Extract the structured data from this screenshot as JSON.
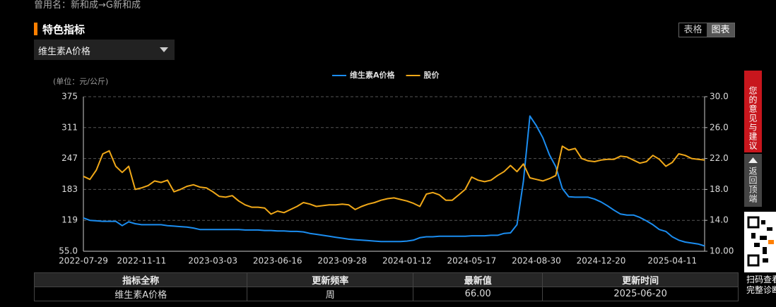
{
  "header": {
    "former_name": "曾用名：新和成→G新和成",
    "section_title": "特色指标",
    "buttons": [
      "表格",
      "图表"
    ],
    "dropdown": "维生素A价格"
  },
  "chart_data": {
    "type": "line",
    "unit_label": "(单位：元/公斤)",
    "categories": [
      "2022-07-29",
      null,
      null,
      null,
      null,
      null,
      null,
      null,
      null,
      "2022-11-11",
      null,
      null,
      null,
      null,
      null,
      null,
      null,
      null,
      null,
      null,
      "2023-03-03",
      null,
      null,
      null,
      null,
      null,
      null,
      null,
      null,
      null,
      "2023-06-16",
      null,
      null,
      null,
      null,
      null,
      null,
      null,
      null,
      null,
      "2023-09-28",
      null,
      null,
      null,
      null,
      null,
      null,
      null,
      null,
      null,
      "2024-01-12",
      null,
      null,
      null,
      null,
      null,
      null,
      null,
      null,
      null,
      "2024-05-17",
      null,
      null,
      null,
      null,
      null,
      null,
      null,
      null,
      null,
      "2024-08-30",
      null,
      null,
      null,
      null,
      null,
      null,
      null,
      null,
      null,
      "2024-12-20",
      null,
      null,
      null,
      null,
      null,
      null,
      null,
      null,
      null,
      null,
      "2025-04-11",
      null,
      null,
      null,
      null,
      null
    ],
    "series": [
      {
        "name": "维生素A价格",
        "color": "#1b8df0",
        "values": [
          124,
          119,
          118,
          117,
          117,
          117,
          108,
          116,
          112,
          110,
          110,
          110,
          110,
          108,
          107,
          106,
          105,
          103,
          100,
          100,
          100,
          100,
          100,
          100,
          100,
          99,
          99,
          99,
          98,
          98,
          97,
          97,
          96,
          96,
          95,
          92,
          90,
          88,
          86,
          84,
          82,
          80,
          79,
          78,
          77,
          76,
          75,
          75,
          75,
          75,
          76,
          78,
          83,
          85,
          85,
          86,
          86,
          86,
          86,
          86,
          87,
          87,
          87,
          88,
          88,
          92,
          93,
          110,
          200,
          335,
          315,
          290,
          255,
          230,
          185,
          168,
          167,
          167,
          167,
          163,
          157,
          149,
          140,
          132,
          130,
          130,
          125,
          118,
          110,
          100,
          96,
          85,
          78,
          74,
          72,
          70,
          66
        ]
      },
      {
        "name": "股价",
        "color": "#f0a818",
        "axis": "y2",
        "values": [
          19.7,
          19.3,
          20.5,
          22.6,
          23.0,
          21.0,
          20.2,
          21.0,
          18.0,
          18.2,
          18.5,
          19.1,
          18.9,
          19.2,
          17.7,
          18.0,
          18.4,
          18.6,
          18.3,
          18.2,
          17.7,
          17.1,
          17.0,
          17.2,
          16.5,
          16.0,
          15.7,
          15.7,
          15.6,
          14.8,
          15.2,
          15.0,
          15.4,
          15.8,
          16.3,
          16.1,
          15.8,
          15.9,
          16.0,
          16.0,
          16.1,
          16.0,
          15.4,
          15.8,
          16.1,
          16.3,
          16.6,
          16.8,
          16.9,
          16.7,
          16.5,
          16.2,
          15.8,
          17.4,
          17.6,
          17.3,
          16.6,
          16.6,
          17.3,
          18.0,
          19.6,
          19.2,
          19.0,
          19.2,
          19.8,
          20.3,
          21.1,
          20.3,
          21.3,
          19.5,
          19.3,
          19.1,
          19.4,
          19.8,
          23.6,
          23.1,
          23.3,
          22.0,
          21.7,
          21.6,
          21.8,
          21.9,
          21.9,
          22.3,
          22.2,
          21.8,
          21.4,
          21.6,
          22.4,
          21.9,
          21.0,
          21.5,
          22.6,
          22.4,
          22.0,
          21.9,
          21.8
        ]
      }
    ],
    "ylim": [
      55,
      375
    ],
    "yticks": [
      {
        "value": 55,
        "label": "55.0"
      },
      119,
      183,
      247,
      311,
      375
    ],
    "y2lim": [
      10,
      30
    ],
    "y2ticks": [
      {
        "value": 10,
        "label": "10.00"
      },
      {
        "value": 14,
        "label": "14.0"
      },
      {
        "value": 18,
        "label": "18.0"
      },
      {
        "value": 22,
        "label": "22.0"
      },
      {
        "value": 26,
        "label": "26.0"
      },
      {
        "value": 30,
        "label": "30.0"
      }
    ],
    "grid": true
  },
  "table": {
    "columns": [
      "指标全称",
      "更新频率",
      "最新值",
      "更新时间"
    ],
    "rows": [
      [
        "维生素A价格",
        "周",
        "66.00",
        "2025-06-20"
      ]
    ]
  },
  "sidebar": {
    "feedback": "您的意见与建议",
    "back_to_top": "返回顶端",
    "qr_caption": [
      "扫码查看",
      "完整诊断"
    ]
  }
}
